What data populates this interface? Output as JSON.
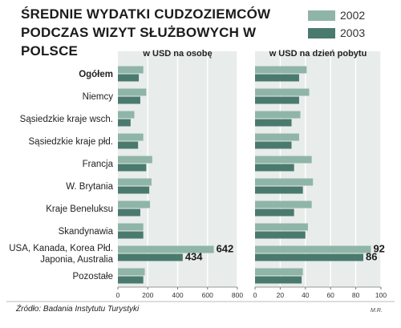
{
  "header": {
    "title_line1": "ŚREDNIE WYDATKI CUDZOZIEMCÓW",
    "title_line2": "PODCZAS WIZYT SŁUŻBOWYCH W POLSCE"
  },
  "legend": [
    {
      "label": "2002",
      "color": "#8fb5a8"
    },
    {
      "label": "2003",
      "color": "#4a7a6e"
    }
  ],
  "footer": {
    "source": "Źródło: Badania Instytutu Turystyki",
    "author": "M.R."
  },
  "chart_data": {
    "type": "bar",
    "orientation": "horizontal",
    "categories": [
      "Ogółem",
      "Niemcy",
      "Sąsiedzkie kraje wsch.",
      "Sąsiedzkie kraje płd.",
      "Francja",
      "W. Brytania",
      "Kraje Beneluksu",
      "Skandynawia",
      "USA, Kanada, Korea Płd.\nJaponia, Australia",
      "Pozostałe"
    ],
    "category_lines": [
      [
        "Ogółem"
      ],
      [
        "Niemcy"
      ],
      [
        "Sąsiedzkie kraje wsch."
      ],
      [
        "Sąsiedzkie kraje płd."
      ],
      [
        "Francja"
      ],
      [
        "W. Brytania"
      ],
      [
        "Kraje Beneluksu"
      ],
      [
        "Skandynawia"
      ],
      [
        "USA, Kanada, Korea Płd.",
        "Japonia, Australia"
      ],
      [
        "Pozostałe"
      ]
    ],
    "bold_categories": [
      "Ogółem"
    ],
    "panels": [
      {
        "title": "w USD na osobę",
        "xlim": [
          0,
          800
        ],
        "xticks": [
          "0",
          "200",
          "400",
          "600",
          "800"
        ],
        "xtick_values": [
          0,
          200,
          400,
          600,
          800
        ],
        "series": [
          {
            "name": "2002",
            "values": [
              170,
              190,
              110,
              170,
              230,
              225,
              215,
              170,
              642,
              180
            ]
          },
          {
            "name": "2003",
            "values": [
              140,
              150,
              85,
              135,
              190,
              210,
              150,
              170,
              434,
              170
            ]
          }
        ],
        "data_labels": [
          {
            "category_index": 8,
            "series_index": 0,
            "text": "642"
          },
          {
            "category_index": 8,
            "series_index": 1,
            "text": "434"
          }
        ]
      },
      {
        "title": "w USD na dzień pobytu",
        "xlim": [
          0,
          100
        ],
        "xticks": [
          "0",
          "20",
          "40",
          "60",
          "80",
          "100"
        ],
        "xtick_values": [
          0,
          20,
          40,
          60,
          80,
          100
        ],
        "series": [
          {
            "name": "2002",
            "values": [
              41,
              43,
              36,
              35,
              45,
              46,
              45,
              42,
              92,
              38
            ]
          },
          {
            "name": "2003",
            "values": [
              35,
              35,
              29,
              29,
              31,
              38,
              31,
              40,
              86,
              37
            ]
          }
        ],
        "data_labels": [
          {
            "category_index": 8,
            "series_index": 0,
            "text": "92"
          },
          {
            "category_index": 8,
            "series_index": 1,
            "text": "86"
          }
        ]
      }
    ],
    "grid": true,
    "legend_position": "top-right",
    "background": "#e8ecea",
    "gridline_color": "#ffffff"
  }
}
